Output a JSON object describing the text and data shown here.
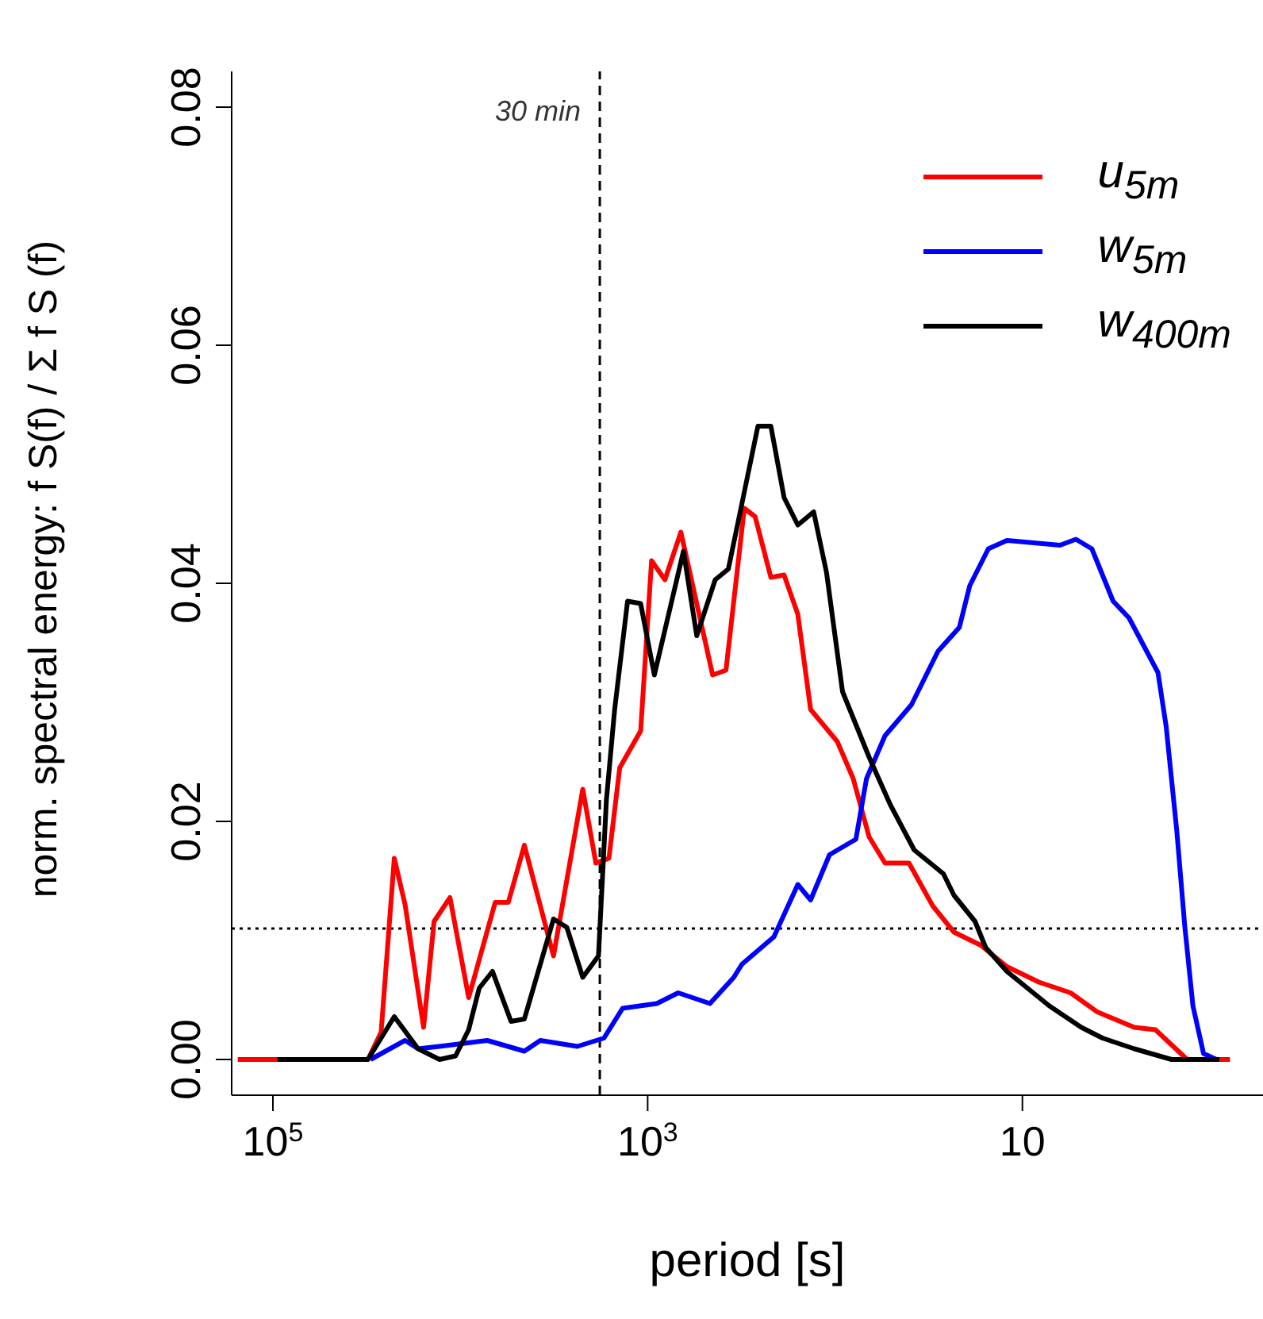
{
  "chart_data": {
    "type": "line",
    "xlabel": "period [s]",
    "ylabel": "norm. spectral energy:  f S(f) / Σ f S (f)",
    "log": "x",
    "xlim": [
      166000,
      0.52
    ],
    "xticks": [
      {
        "value": 100000,
        "label": "10$^{5}$"
      },
      {
        "value": 1000,
        "label": "10$^{3}$"
      },
      10
    ],
    "ylim": [
      -0.003,
      0.083
    ],
    "yticks": [
      {
        "value": 0,
        "label": "0.00"
      },
      {
        "value": 0.02,
        "label": "0.02"
      },
      {
        "value": 0.04,
        "label": "0.04"
      },
      {
        "value": 0.06,
        "label": "0.06"
      },
      {
        "value": 0.08,
        "label": "0.08"
      }
    ],
    "grid": false,
    "legend": "top right",
    "line_style": "solid",
    "marker": "none",
    "ref_lines": [
      {
        "axis": "x",
        "value": 1800,
        "label": "30 min",
        "line_style": "dashed",
        "color": "#000000"
      },
      {
        "axis": "y",
        "value": 0.011,
        "label": null,
        "line_style": "dotted",
        "color": "#000000"
      }
    ],
    "series": [
      {
        "name": "u$_{5m}$",
        "color": "#ff0000",
        "x": [
          154000,
          31100,
          26450,
          22500,
          19700,
          15700,
          13800,
          11350,
          9020,
          6510,
          5540,
          4550,
          3180,
          2220,
          1890,
          1610,
          1410,
          1090,
          953,
          809,
          665,
          450,
          382,
          305,
          267,
          220,
          187,
          158,
          135,
          97.2,
          80.0,
          65.8,
          54.1,
          40.3,
          30.1,
          23.2,
          16.7,
          12.1,
          8.17,
          5.53,
          3.99,
          2.53,
          1.95,
          1.32,
          0.78
        ],
        "values": [
          0,
          0,
          0.0023,
          0.0169,
          0.013,
          0.0027,
          0.0116,
          0.0136,
          0.0052,
          0.0132,
          0.0132,
          0.018,
          0.0087,
          0.0227,
          0.0165,
          0.0169,
          0.0245,
          0.0276,
          0.0419,
          0.0403,
          0.0443,
          0.0323,
          0.0327,
          0.0463,
          0.0456,
          0.0405,
          0.0407,
          0.0374,
          0.0294,
          0.0267,
          0.0236,
          0.0187,
          0.0165,
          0.0165,
          0.0129,
          0.0107,
          0.0096,
          0.0078,
          0.0065,
          0.0056,
          0.004,
          0.0027,
          0.0025,
          0,
          0
        ]
      },
      {
        "name": "w$_{5m}$",
        "color": "#0000ff",
        "x": [
          30100,
          19700,
          16800,
          12900,
          7180,
          4550,
          3740,
          2370,
          1710,
          1360,
          893,
          687,
          465,
          347,
          314,
          212,
          158,
          135,
          107,
          77.4,
          67.9,
          54.1,
          39.1,
          28.2,
          21.7,
          19.1,
          15.2,
          12.1,
          6.3,
          5.18,
          4.26,
          3.28,
          2.7,
          1.89,
          1.71,
          1.5,
          1.36,
          1.23,
          1.08,
          0.92
        ],
        "values": [
          0,
          0.0016,
          0.0009,
          0.0011,
          0.0016,
          0.0007,
          0.0016,
          0.0011,
          0.0018,
          0.0043,
          0.0047,
          0.0056,
          0.0047,
          0.0069,
          0.008,
          0.0103,
          0.0147,
          0.0134,
          0.0172,
          0.0185,
          0.0236,
          0.0272,
          0.0298,
          0.0343,
          0.0363,
          0.0398,
          0.0429,
          0.0436,
          0.0432,
          0.0437,
          0.0429,
          0.0385,
          0.0371,
          0.0325,
          0.028,
          0.0192,
          0.0112,
          0.0045,
          0.0005,
          0
        ]
      },
      {
        "name": "w$_{400m}$",
        "color": "#000000",
        "x": [
          94400,
          31100,
          22500,
          16800,
          12900,
          10600,
          9020,
          7920,
          6730,
          5360,
          4550,
          3180,
          2700,
          2220,
          1830,
          1660,
          1500,
          1280,
          1090,
          921,
          644,
          547,
          436,
          371,
          314,
          258,
          242,
          220,
          187,
          158,
          130,
          111,
          91.2,
          65.8,
          50.7,
          37.8,
          26.4,
          23.2,
          17.9,
          15.7,
          12.1,
          7.18,
          4.85,
          3.74,
          2.53,
          1.6,
          0.89
        ],
        "values": [
          0,
          0,
          0.0036,
          0.0009,
          0,
          0.0003,
          0.0025,
          0.006,
          0.0074,
          0.0032,
          0.0034,
          0.0118,
          0.0111,
          0.0069,
          0.0087,
          0.0218,
          0.0294,
          0.0385,
          0.0383,
          0.0323,
          0.0427,
          0.0356,
          0.0403,
          0.0412,
          0.0467,
          0.0532,
          0.0532,
          0.0532,
          0.0472,
          0.0449,
          0.046,
          0.0409,
          0.0309,
          0.0254,
          0.0214,
          0.0176,
          0.0156,
          0.0138,
          0.0116,
          0.0094,
          0.0074,
          0.0045,
          0.0027,
          0.0018,
          0.0009,
          0,
          0
        ]
      }
    ]
  }
}
